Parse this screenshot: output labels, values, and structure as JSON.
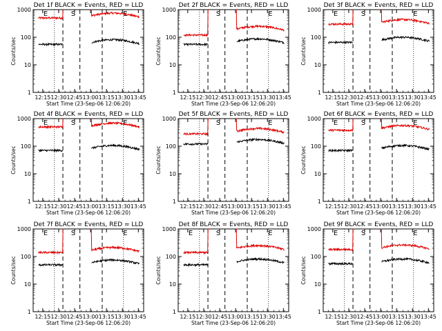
{
  "chart_data": [
    {
      "type": "line",
      "title": "Det 1f BLACK = Events, RED = LLD",
      "xlabel": "Start Time (23-Sep-06 12:06:20)",
      "ylabel": "Counts/sec",
      "yscale": "log",
      "ylim": [
        1,
        1000
      ],
      "xticks": [
        "12:15",
        "12:30",
        "12:45",
        "13:00",
        "13:15",
        "13:30",
        "13:45"
      ],
      "yticks": [
        "1",
        "10",
        "100",
        "1000"
      ],
      "markers": [
        {
          "label": "E",
          "time": "12:15"
        },
        {
          "label": "S",
          "time": "12:41"
        },
        {
          "label": "E",
          "time": "13:30"
        }
      ],
      "series": [
        {
          "name": "LLD",
          "color": "#e00000",
          "level_before": 500,
          "level_after": 600
        },
        {
          "name": "Events",
          "color": "#000000",
          "level_before": 55,
          "level_after": 65
        }
      ]
    },
    {
      "type": "line",
      "title": "Det 2f BLACK = Events, RED = LLD",
      "xlabel": "Start Time (23-Sep-06 12:06:20)",
      "ylabel": "Counts/sec",
      "yscale": "log",
      "ylim": [
        1,
        1000
      ],
      "xticks": [
        "12:15",
        "12:30",
        "12:45",
        "13:00",
        "13:15",
        "13:30",
        "13:45"
      ],
      "yticks": [
        "1",
        "10",
        "100",
        "1000"
      ],
      "markers": [
        {
          "label": "S",
          "time": "12:41"
        },
        {
          "label": "E",
          "time": "13:30"
        }
      ],
      "series": [
        {
          "name": "LLD",
          "color": "#e00000",
          "level_before": 120,
          "level_after": 200
        },
        {
          "name": "Events",
          "color": "#000000",
          "level_before": 55,
          "level_after": 70
        }
      ]
    },
    {
      "type": "line",
      "title": "Det 3f BLACK = Events, RED = LLD",
      "xlabel": "Start Time (23-Sep-06 12:06:20)",
      "ylabel": "Counts/sec",
      "yscale": "log",
      "ylim": [
        1,
        1000
      ],
      "xticks": [
        "12:15",
        "12:30",
        "12:45",
        "13:00",
        "13:15",
        "13:30",
        "13:45"
      ],
      "yticks": [
        "1",
        "10",
        "100",
        "1000"
      ],
      "markers": [
        {
          "label": "E",
          "time": "12:15"
        },
        {
          "label": "S",
          "time": "12:41"
        },
        {
          "label": "E",
          "time": "13:30"
        }
      ],
      "series": [
        {
          "name": "LLD",
          "color": "#e00000",
          "level_before": 300,
          "level_after": 350
        },
        {
          "name": "Events",
          "color": "#000000",
          "level_before": 65,
          "level_after": 80
        }
      ]
    },
    {
      "type": "line",
      "title": "Det 4f BLACK = Events, RED = LLD",
      "xlabel": "Start Time (23-Sep-06 12:06:20)",
      "ylabel": "Counts/sec",
      "yscale": "log",
      "ylim": [
        1,
        1000
      ],
      "xticks": [
        "12:15",
        "12:30",
        "12:45",
        "13:00",
        "13:15",
        "13:30",
        "13:45"
      ],
      "yticks": [
        "1",
        "10",
        "100",
        "1000"
      ],
      "markers": [
        {
          "label": "E",
          "time": "12:15"
        },
        {
          "label": "S",
          "time": "12:41"
        },
        {
          "label": "E",
          "time": "13:30"
        }
      ],
      "series": [
        {
          "name": "LLD",
          "color": "#e00000",
          "level_before": 500,
          "level_after": 550
        },
        {
          "name": "Events",
          "color": "#000000",
          "level_before": 70,
          "level_after": 85
        }
      ]
    },
    {
      "type": "line",
      "title": "Det 5f BLACK = Events, RED = LLD",
      "xlabel": "Start Time (23-Sep-06 12:06:20)",
      "ylabel": "Counts/sec",
      "yscale": "log",
      "ylim": [
        1,
        1000
      ],
      "xticks": [
        "12:15",
        "12:30",
        "12:45",
        "13:00",
        "13:15",
        "13:30",
        "13:45"
      ],
      "yticks": [
        "1",
        "10",
        "100",
        "1000"
      ],
      "markers": [
        {
          "label": "S",
          "time": "12:41"
        },
        {
          "label": "E",
          "time": "13:30"
        }
      ],
      "series": [
        {
          "name": "LLD",
          "color": "#e00000",
          "level_before": 280,
          "level_after": 350
        },
        {
          "name": "Events",
          "color": "#000000",
          "level_before": 120,
          "level_after": 140
        }
      ]
    },
    {
      "type": "line",
      "title": "Det 6f BLACK = Events, RED = LLD",
      "xlabel": "Start Time (23-Sep-06 12:06:20)",
      "ylabel": "Counts/sec",
      "yscale": "log",
      "ylim": [
        1,
        1000
      ],
      "xticks": [
        "12:15",
        "12:30",
        "12:45",
        "13:00",
        "13:15",
        "13:30",
        "13:45"
      ],
      "yticks": [
        "1",
        "10",
        "100",
        "1000"
      ],
      "markers": [
        {
          "label": "E",
          "time": "12:15"
        },
        {
          "label": "S",
          "time": "12:41"
        },
        {
          "label": "E",
          "time": "13:30"
        }
      ],
      "series": [
        {
          "name": "LLD",
          "color": "#e00000",
          "level_before": 380,
          "level_after": 450
        },
        {
          "name": "Events",
          "color": "#000000",
          "level_before": 70,
          "level_after": 85
        }
      ]
    },
    {
      "type": "line",
      "title": "Det 7f BLACK = Events, RED = LLD",
      "xlabel": "Start Time (23-Sep-06 12:06:20)",
      "ylabel": "Counts/sec",
      "yscale": "log",
      "ylim": [
        1,
        1000
      ],
      "xticks": [
        "12:15",
        "12:30",
        "12:45",
        "13:00",
        "13:15",
        "13:30",
        "13:45"
      ],
      "yticks": [
        "1",
        "10",
        "100",
        "1000"
      ],
      "markers": [
        {
          "label": "E",
          "time": "12:15"
        },
        {
          "label": "S",
          "time": "12:41"
        },
        {
          "label": "E",
          "time": "13:30"
        }
      ],
      "series": [
        {
          "name": "LLD",
          "color": "#e00000",
          "level_before": 140,
          "level_after": 170
        },
        {
          "name": "Events",
          "color": "#000000",
          "level_before": 50,
          "level_after": 60
        }
      ]
    },
    {
      "type": "line",
      "title": "Det 8f BLACK = Events, RED = LLD",
      "xlabel": "Start Time (23-Sep-06 12:06:20)",
      "ylabel": "Counts/sec",
      "yscale": "log",
      "ylim": [
        1,
        1000
      ],
      "xticks": [
        "12:15",
        "12:30",
        "12:45",
        "13:00",
        "13:15",
        "13:30",
        "13:45"
      ],
      "yticks": [
        "1",
        "10",
        "100",
        "1000"
      ],
      "markers": [
        {
          "label": "E",
          "time": "12:15"
        },
        {
          "label": "S",
          "time": "12:41"
        },
        {
          "label": "E",
          "time": "13:30"
        }
      ],
      "series": [
        {
          "name": "LLD",
          "color": "#e00000",
          "level_before": 140,
          "level_after": 200
        },
        {
          "name": "Events",
          "color": "#000000",
          "level_before": 50,
          "level_after": 65
        }
      ]
    },
    {
      "type": "line",
      "title": "Det 9f BLACK = Events, RED = LLD",
      "xlabel": "Start Time (23-Sep-06 12:06:20)",
      "ylabel": "Counts/sec",
      "yscale": "log",
      "ylim": [
        1,
        1000
      ],
      "xticks": [
        "12:15",
        "12:30",
        "12:45",
        "13:00",
        "13:15",
        "13:30",
        "13:45"
      ],
      "yticks": [
        "1",
        "10",
        "100",
        "1000"
      ],
      "markers": [
        {
          "label": "E",
          "time": "12:15"
        },
        {
          "label": "S",
          "time": "12:41"
        },
        {
          "label": "E",
          "time": "13:30"
        }
      ],
      "series": [
        {
          "name": "LLD",
          "color": "#e00000",
          "level_before": 180,
          "level_after": 210
        },
        {
          "name": "Events",
          "color": "#000000",
          "level_before": 55,
          "level_after": 65
        }
      ]
    }
  ]
}
